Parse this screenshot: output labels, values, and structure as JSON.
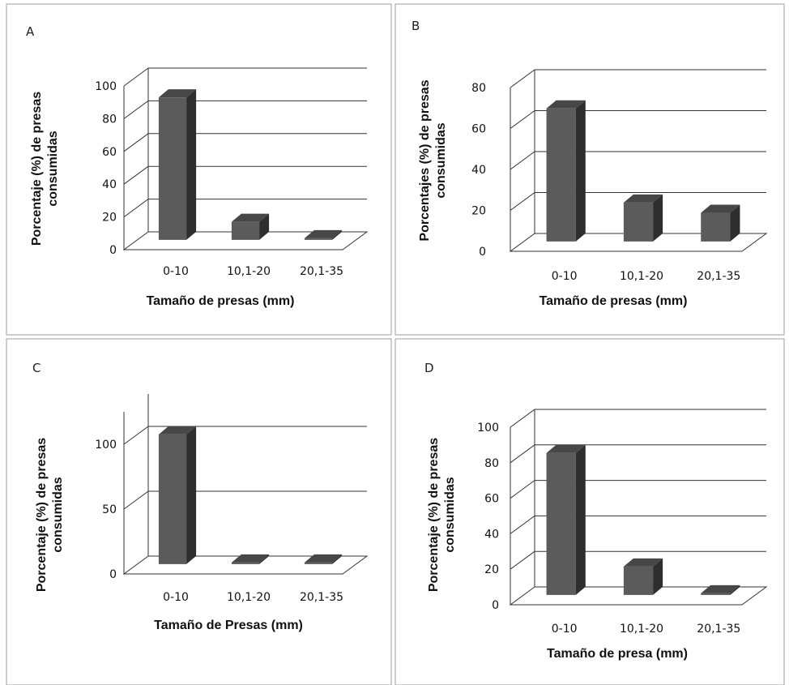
{
  "chart_data": [
    {
      "panel": "A",
      "type": "bar",
      "categories": [
        "0-10",
        "10,1-20",
        "20,1-35"
      ],
      "values": [
        87,
        11,
        1
      ],
      "ylim": [
        0,
        100
      ],
      "yticks": [
        "0",
        "20",
        "40",
        "60",
        "80",
        "100"
      ],
      "xlabel": "Tamaño de presas  (mm)",
      "ylabel": [
        "Porcentaje (%)  de presas",
        "consumidas"
      ],
      "grid": true,
      "legend": "none"
    },
    {
      "panel": "B",
      "type": "bar",
      "categories": [
        "0-10",
        "10,1-20",
        "20,1-35"
      ],
      "values": [
        65,
        19,
        14
      ],
      "ylim": [
        0,
        80
      ],
      "yticks": [
        "0",
        "20",
        "40",
        "60",
        "80"
      ],
      "xlabel": "Tamaño de presas  (mm)",
      "ylabel": [
        "Porcentajes  (%)  de presas",
        "consumidas"
      ],
      "grid": true,
      "legend": "none"
    },
    {
      "panel": "C",
      "type": "bar",
      "categories": [
        "0-10",
        "10,1-20",
        "20,1-35"
      ],
      "values": [
        100,
        0,
        0
      ],
      "ylim": [
        0,
        125
      ],
      "yticks": [
        "0",
        "50",
        "100"
      ],
      "xlabel": "Tamaño de Presas  (mm)",
      "ylabel": [
        "Porcentaje (%)   de presas",
        "consumidas"
      ],
      "grid": true,
      "legend": "none"
    },
    {
      "panel": "D",
      "type": "bar",
      "categories": [
        "0-10",
        "10,1-20",
        "20,1-35"
      ],
      "values": [
        80,
        16,
        0
      ],
      "ylim": [
        0,
        100
      ],
      "yticks": [
        "0",
        "20",
        "40",
        "60",
        "80",
        "100"
      ],
      "xlabel": "Tamaño de presa (mm)",
      "ylabel": [
        "Porcentaje (%)   de presas",
        "consumidas"
      ],
      "grid": true,
      "legend": "none"
    }
  ],
  "colors": {
    "bar_front": "#5b5b5b",
    "bar_side": "#2e2e2e",
    "bar_top": "#474747",
    "gridline": "#333333",
    "frame": "#9e9e9e"
  }
}
